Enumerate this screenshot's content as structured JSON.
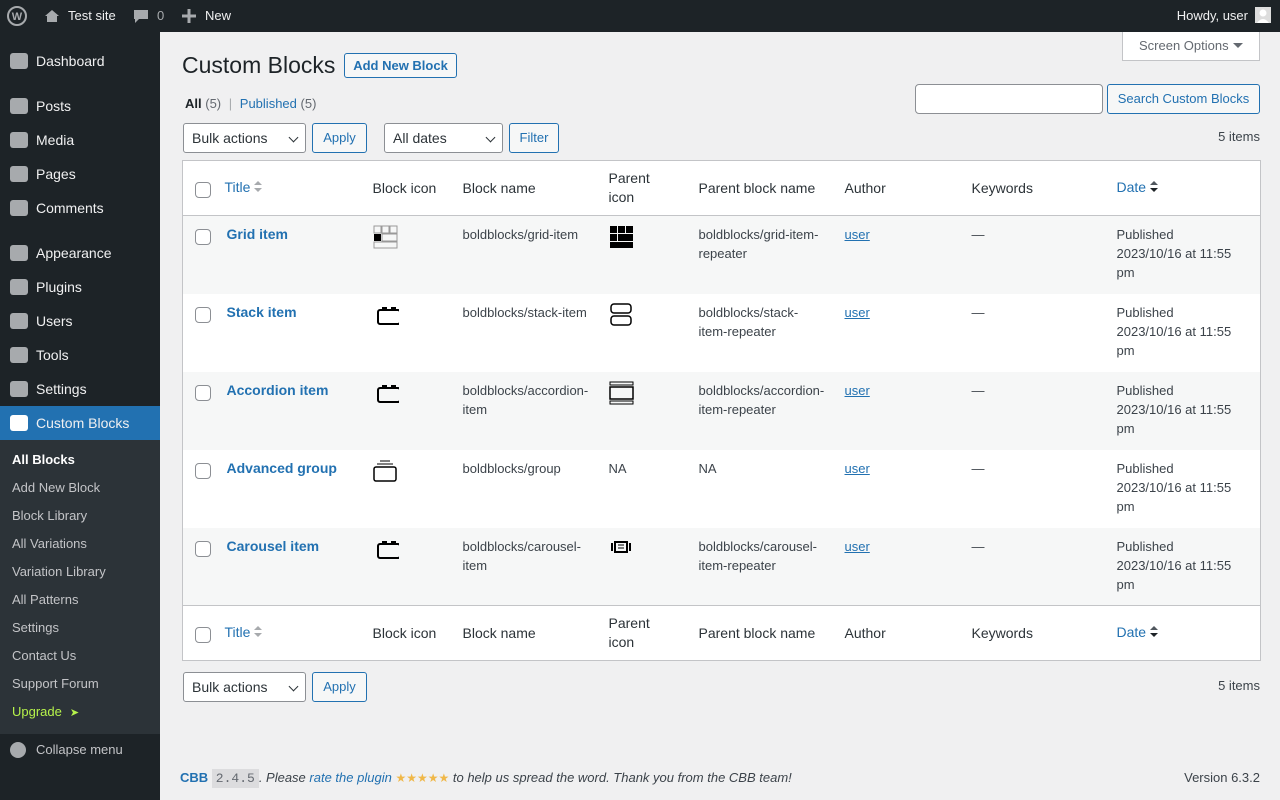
{
  "admin_bar": {
    "site_name": "Test site",
    "comments": "0",
    "new": "New",
    "howdy": "Howdy, user"
  },
  "menu": {
    "items": [
      "Dashboard",
      "Posts",
      "Media",
      "Pages",
      "Comments",
      "Appearance",
      "Plugins",
      "Users",
      "Tools",
      "Settings",
      "Custom Blocks"
    ],
    "submenu": [
      "All Blocks",
      "Add New Block",
      "Block Library",
      "All Variations",
      "Variation Library",
      "All Patterns",
      "Settings",
      "Contact Us",
      "Support Forum",
      "Upgrade"
    ],
    "upgrade_arrow": "➤",
    "collapse": "Collapse menu"
  },
  "header": {
    "title": "Custom Blocks",
    "add_new": "Add New Block",
    "screen_options": "Screen Options"
  },
  "views": [
    {
      "label": "All",
      "count": "(5)"
    },
    {
      "label": "Published",
      "count": "(5)"
    }
  ],
  "views_separator": "|",
  "filters": {
    "bulk": "Bulk actions",
    "apply": "Apply",
    "dates": "All dates",
    "filter": "Filter",
    "items": "5 items",
    "search_button": "Search Custom Blocks"
  },
  "table": {
    "columns": [
      "Title",
      "Block icon",
      "Block name",
      "Parent icon",
      "Parent block name",
      "Author",
      "Keywords",
      "Date"
    ],
    "rows": [
      {
        "title": "Grid item",
        "block_name": "boldblocks/grid-item",
        "parent_block_name": "boldblocks/grid-item-repeater",
        "author": "user",
        "keywords": "—",
        "status": "Published",
        "date": "2023/10/16 at 11:55 pm"
      },
      {
        "title": "Stack item",
        "block_name": "boldblocks/stack-item",
        "parent_block_name": "boldblocks/stack-item-repeater",
        "author": "user",
        "keywords": "—",
        "status": "Published",
        "date": "2023/10/16 at 11:55 pm"
      },
      {
        "title": "Accordion item",
        "block_name": "boldblocks/accordion-item",
        "parent_block_name": "boldblocks/accordion-item-repeater",
        "author": "user",
        "keywords": "—",
        "status": "Published",
        "date": "2023/10/16 at 11:55 pm"
      },
      {
        "title": "Advanced group",
        "block_name": "boldblocks/group",
        "parent_icon": "NA",
        "parent_block_name": "NA",
        "author": "user",
        "keywords": "—",
        "status": "Published",
        "date": "2023/10/16 at 11:55 pm"
      },
      {
        "title": "Carousel item",
        "block_name": "boldblocks/carousel-item",
        "parent_block_name": "boldblocks/carousel-item-repeater",
        "author": "user",
        "keywords": "—",
        "status": "Published",
        "date": "2023/10/16 at 11:55 pm"
      }
    ]
  },
  "footer": {
    "brand": "CBB",
    "version": "2.4.5",
    "text_before": ". Please",
    "link": "rate the plugin",
    "stars": "★★★★★",
    "text_after": "to help us spread the word. Thank you from the CBB team!",
    "wp_version": "Version 6.3.2"
  }
}
